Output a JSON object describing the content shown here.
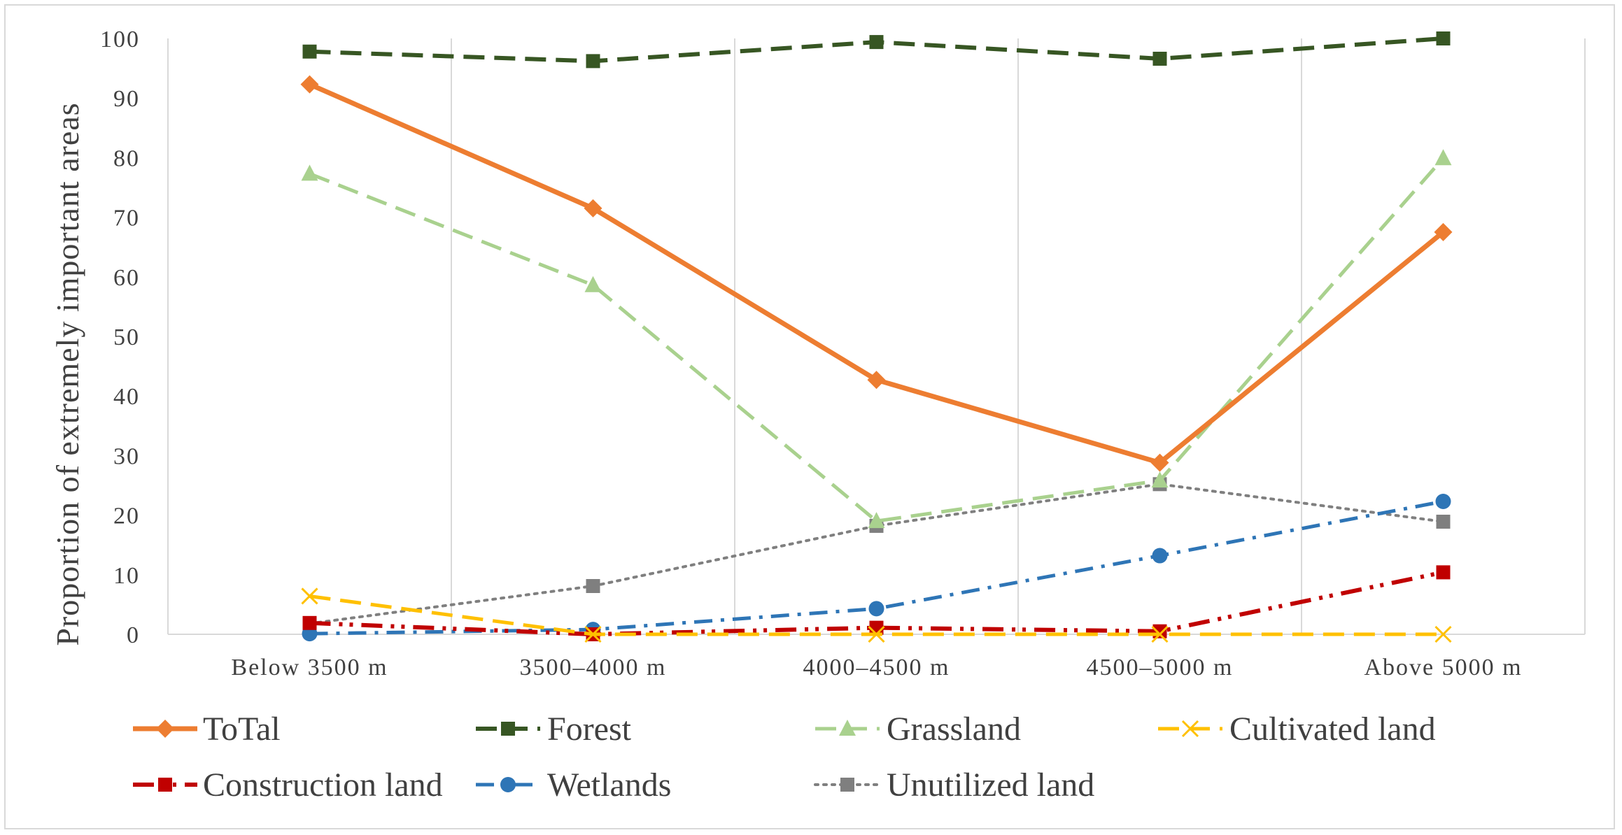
{
  "chart_data": {
    "type": "line",
    "title": "",
    "xlabel": "",
    "ylabel": "Proportion  of extremely  important  areas",
    "categories": [
      "Below 3500 m",
      "3500–4000 m",
      "4000–4500 m",
      "4500–5000 m",
      "Above 5000 m"
    ],
    "ylim": [
      0,
      100
    ],
    "yticks": [
      0,
      10,
      20,
      30,
      40,
      50,
      60,
      70,
      80,
      90,
      100
    ],
    "grid": "vertical",
    "legend_position": "bottom",
    "series": [
      {
        "name": "ToTal",
        "values": [
          92.3,
          71.5,
          42.7,
          28.8,
          67.5
        ],
        "color": "#ed7d31",
        "dash": "solid",
        "marker": "diamond"
      },
      {
        "name": "Forest",
        "values": [
          97.8,
          96.2,
          99.4,
          96.6,
          100
        ],
        "color": "#375623",
        "dash": "dash",
        "marker": "square"
      },
      {
        "name": "Grassland",
        "values": [
          77.3,
          58.6,
          19.0,
          25.8,
          79.9
        ],
        "color": "#a9d18e",
        "dash": "dash",
        "marker": "triangle"
      },
      {
        "name": "Cultivated land",
        "values": [
          6.4,
          0,
          0,
          0,
          0
        ],
        "color": "#ffc000",
        "dash": "dash",
        "marker": "x"
      },
      {
        "name": "Construction land",
        "values": [
          1.9,
          0,
          1.1,
          0.5,
          10.4
        ],
        "color": "#c00000",
        "dash": "dashdotdot",
        "marker": "square"
      },
      {
        "name": "Wetlands",
        "values": [
          0.1,
          0.8,
          4.3,
          13.2,
          22.3
        ],
        "color": "#2e75b6",
        "dash": "dashdot",
        "marker": "circle"
      },
      {
        "name": "Unutilized land",
        "values": [
          1.8,
          8.1,
          18.2,
          25.2,
          18.9
        ],
        "color": "#7f7f7f",
        "dash": "dot",
        "marker": "square"
      }
    ]
  }
}
